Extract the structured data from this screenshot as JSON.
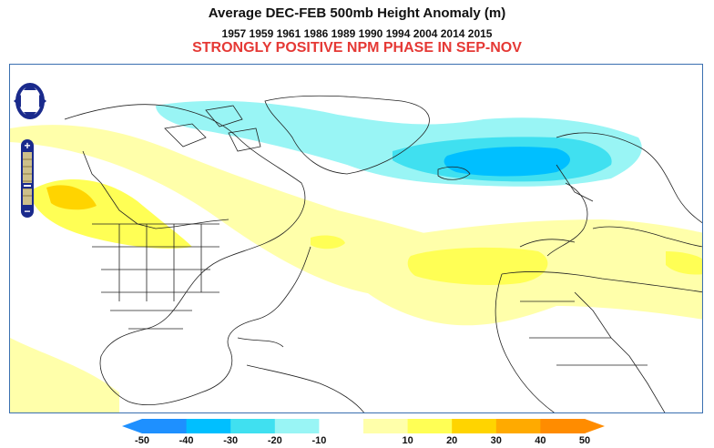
{
  "title": "Average DEC-FEB 500mb Height Anomaly (m)",
  "years": "1957 1959 1961 1986 1989 1990 1994 2004 2014 2015",
  "subtitle": "STRONGLY POSITIVE NPM PHASE IN SEP-NOV",
  "colorbar": {
    "labels": [
      "-50",
      "-40",
      "-30",
      "-20",
      "-10",
      "10",
      "20",
      "30",
      "40",
      "50"
    ],
    "colors": [
      "#1e90ff",
      "#00bfff",
      "#40e0f0",
      "#99f5f5",
      "#ffffff",
      "#ffffaa",
      "#ffff55",
      "#ffd400",
      "#ffaa00",
      "#ff8c00"
    ],
    "extension_low": "#1e90ff",
    "extension_high": "#ff8c00"
  },
  "map_controls": {
    "pan": "pan-control",
    "zoom_in": "+",
    "zoom_out": "−"
  }
}
